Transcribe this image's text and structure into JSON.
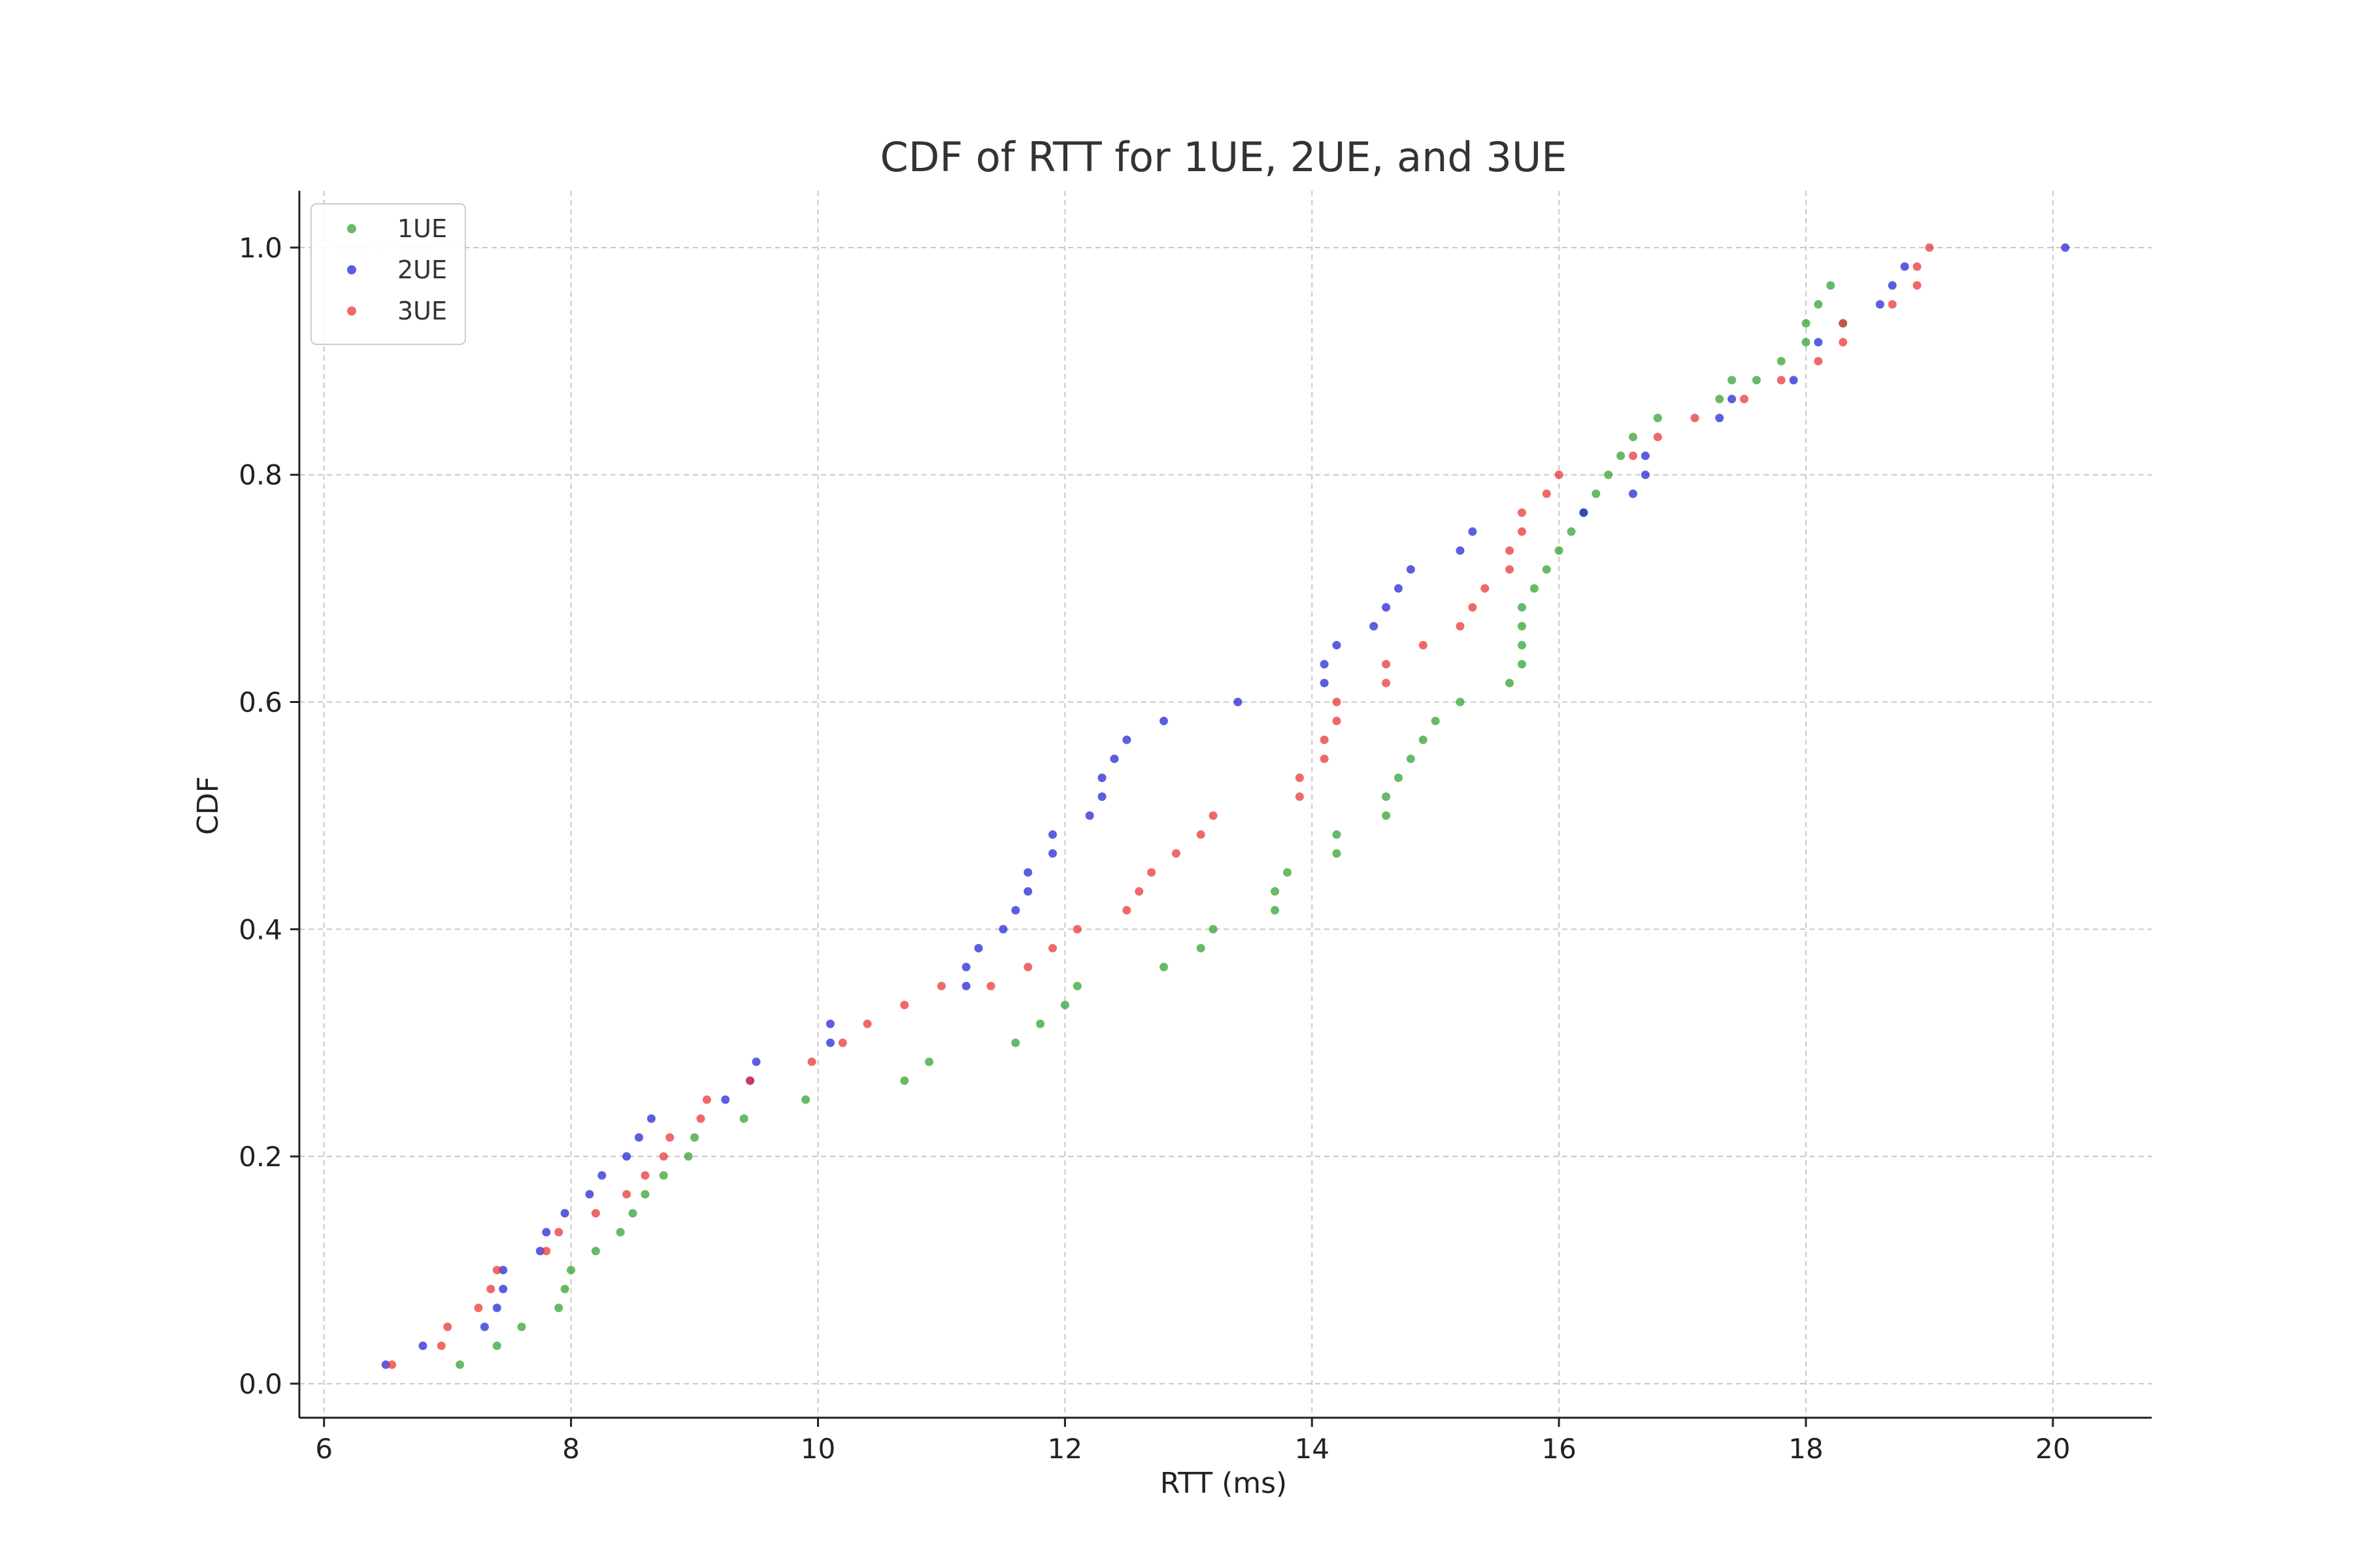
{
  "chart_data": {
    "type": "scatter",
    "title": "CDF of RTT for 1UE, 2UE, and 3UE",
    "xlabel": "RTT (ms)",
    "ylabel": "CDF",
    "xlim": [
      5.8,
      20.8
    ],
    "ylim": [
      -0.03,
      1.05
    ],
    "xticks": [
      6,
      8,
      10,
      12,
      14,
      16,
      18,
      20
    ],
    "yticks": [
      0.0,
      0.2,
      0.4,
      0.6,
      0.8,
      1.0
    ],
    "xtick_labels": [
      "6",
      "8",
      "10",
      "12",
      "14",
      "16",
      "18",
      "20"
    ],
    "ytick_labels": [
      "0.0",
      "0.2",
      "0.4",
      "0.6",
      "0.8",
      "1.0"
    ],
    "grid": true,
    "legend_position": "top-left",
    "series": [
      {
        "name": "1UE",
        "color": "#2ca02c",
        "x": [
          7.1,
          7.4,
          7.6,
          7.9,
          7.95,
          8.0,
          8.2,
          8.4,
          8.5,
          8.6,
          8.75,
          8.95,
          9.0,
          9.4,
          9.9,
          10.7,
          10.9,
          11.6,
          11.8,
          12.0,
          12.1,
          12.8,
          13.1,
          13.2,
          13.7,
          13.7,
          13.8,
          14.2,
          14.2,
          14.6,
          14.6,
          14.7,
          14.8,
          14.9,
          15.0,
          15.2,
          15.6,
          15.7,
          15.7,
          15.7,
          15.7,
          15.8,
          15.9,
          16.0,
          16.1,
          16.2,
          16.3,
          16.4,
          16.5,
          16.6,
          16.8,
          17.3,
          17.4,
          17.6,
          17.8,
          18.0,
          18.0,
          18.1,
          18.2,
          18.3
        ],
        "y": [
          0.0167,
          0.0333,
          0.05,
          0.0667,
          0.0833,
          0.1,
          0.1167,
          0.1333,
          0.15,
          0.1667,
          0.1833,
          0.2,
          0.2167,
          0.2333,
          0.25,
          0.2667,
          0.2833,
          0.3,
          0.3167,
          0.3333,
          0.35,
          0.3667,
          0.3833,
          0.4,
          0.4167,
          0.4333,
          0.45,
          0.4667,
          0.4833,
          0.5,
          0.5167,
          0.5333,
          0.55,
          0.5667,
          0.5833,
          0.6,
          0.6167,
          0.6333,
          0.65,
          0.6667,
          0.6833,
          0.7,
          0.7167,
          0.7333,
          0.75,
          0.7667,
          0.7833,
          0.8,
          0.8167,
          0.8333,
          0.85,
          0.8667,
          0.8833,
          0.8833,
          0.9,
          0.9167,
          0.9333,
          0.95,
          0.9667,
          0.9333
        ]
      },
      {
        "name": "2UE",
        "color": "#1f1fd4",
        "x": [
          6.5,
          6.8,
          7.3,
          7.4,
          7.45,
          7.45,
          7.75,
          7.8,
          7.95,
          8.15,
          8.25,
          8.45,
          8.55,
          8.65,
          9.25,
          9.45,
          9.5,
          10.1,
          10.1,
          11.2,
          11.2,
          11.3,
          11.5,
          11.6,
          11.7,
          11.7,
          11.9,
          11.9,
          12.2,
          12.3,
          12.3,
          12.4,
          12.5,
          12.8,
          13.4,
          14.1,
          14.1,
          14.2,
          14.5,
          14.6,
          14.7,
          14.8,
          15.2,
          15.3,
          16.2,
          16.6,
          16.7,
          16.7,
          17.3,
          17.4,
          17.9,
          18.1,
          18.6,
          18.7,
          18.8,
          20.1
        ],
        "y": [
          0.0167,
          0.0333,
          0.05,
          0.0667,
          0.0833,
          0.1,
          0.1167,
          0.1333,
          0.15,
          0.1667,
          0.1833,
          0.2,
          0.2167,
          0.2333,
          0.25,
          0.2667,
          0.2833,
          0.3,
          0.3167,
          0.35,
          0.3667,
          0.3833,
          0.4,
          0.4167,
          0.4333,
          0.45,
          0.4667,
          0.4833,
          0.5,
          0.5167,
          0.5333,
          0.55,
          0.5667,
          0.5833,
          0.6,
          0.6167,
          0.6333,
          0.65,
          0.6667,
          0.6833,
          0.7,
          0.7167,
          0.7333,
          0.75,
          0.7667,
          0.7833,
          0.8,
          0.8167,
          0.85,
          0.8667,
          0.8833,
          0.9167,
          0.95,
          0.9667,
          0.9833,
          1.0
        ]
      },
      {
        "name": "3UE",
        "color": "#e8312f",
        "x": [
          6.55,
          6.95,
          7.0,
          7.25,
          7.35,
          7.4,
          7.8,
          7.9,
          8.2,
          8.45,
          8.6,
          8.75,
          8.8,
          9.05,
          9.1,
          9.45,
          9.95,
          10.2,
          10.4,
          10.7,
          11.0,
          11.4,
          11.7,
          11.9,
          12.1,
          12.5,
          12.6,
          12.7,
          12.9,
          13.1,
          13.2,
          13.9,
          13.9,
          14.1,
          14.1,
          14.2,
          14.2,
          14.6,
          14.6,
          14.9,
          15.2,
          15.3,
          15.4,
          15.6,
          15.6,
          15.7,
          15.7,
          15.9,
          16.0,
          16.6,
          16.8,
          17.1,
          17.5,
          17.8,
          18.1,
          18.3,
          18.3,
          18.7,
          18.9,
          18.9,
          19.0
        ],
        "y": [
          0.0167,
          0.0333,
          0.05,
          0.0667,
          0.0833,
          0.1,
          0.1167,
          0.1333,
          0.15,
          0.1667,
          0.1833,
          0.2,
          0.2167,
          0.2333,
          0.25,
          0.2667,
          0.2833,
          0.3,
          0.3167,
          0.3333,
          0.35,
          0.35,
          0.3667,
          0.3833,
          0.4,
          0.4167,
          0.4333,
          0.45,
          0.4667,
          0.4833,
          0.5,
          0.5167,
          0.5333,
          0.55,
          0.5667,
          0.5833,
          0.6,
          0.6167,
          0.6333,
          0.65,
          0.6667,
          0.6833,
          0.7,
          0.7167,
          0.7333,
          0.75,
          0.7667,
          0.7833,
          0.8,
          0.8167,
          0.8333,
          0.85,
          0.8667,
          0.8833,
          0.9,
          0.9167,
          0.9333,
          0.95,
          0.9667,
          0.9833,
          1.0
        ]
      }
    ]
  }
}
